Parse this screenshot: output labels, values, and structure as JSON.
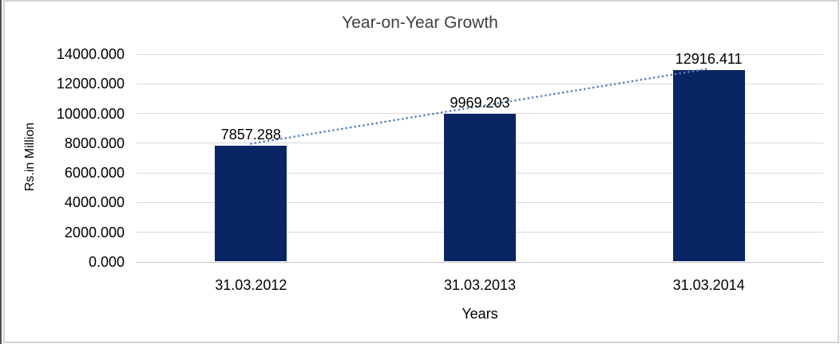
{
  "chart_data": {
    "type": "bar",
    "title": "Year-on-Year Growth",
    "xlabel": "Years",
    "ylabel": "Rs.in Million",
    "categories": [
      "31.03.2012",
      "31.03.2013",
      "31.03.2014"
    ],
    "values": [
      7857.288,
      9969.203,
      12916.411
    ],
    "data_labels": [
      "7857.288",
      "9969.203",
      "12916.411"
    ],
    "ylim": [
      0,
      14000
    ],
    "y_ticks": [
      {
        "value": 0,
        "label": "0.000"
      },
      {
        "value": 2000,
        "label": "2000.000"
      },
      {
        "value": 4000,
        "label": "4000.000"
      },
      {
        "value": 6000,
        "label": "6000.000"
      },
      {
        "value": 8000,
        "label": "8000.000"
      },
      {
        "value": 10000,
        "label": "10000.000"
      },
      {
        "value": 12000,
        "label": "12000.000"
      },
      {
        "value": 14000,
        "label": "14000.000"
      }
    ],
    "grid": "horizontal-major",
    "legend": "none",
    "trendline": {
      "type": "linear",
      "style": "dotted"
    },
    "colors": {
      "bar": "#0a2564",
      "trendline": "#4f81bd",
      "gridline": "#d9d9d9",
      "baseline": "#c8c8c8",
      "label_text": "#000000",
      "title_text": "#404040",
      "chart_border": "#d3d3d3",
      "edge_line": "#4d4d4d"
    }
  }
}
